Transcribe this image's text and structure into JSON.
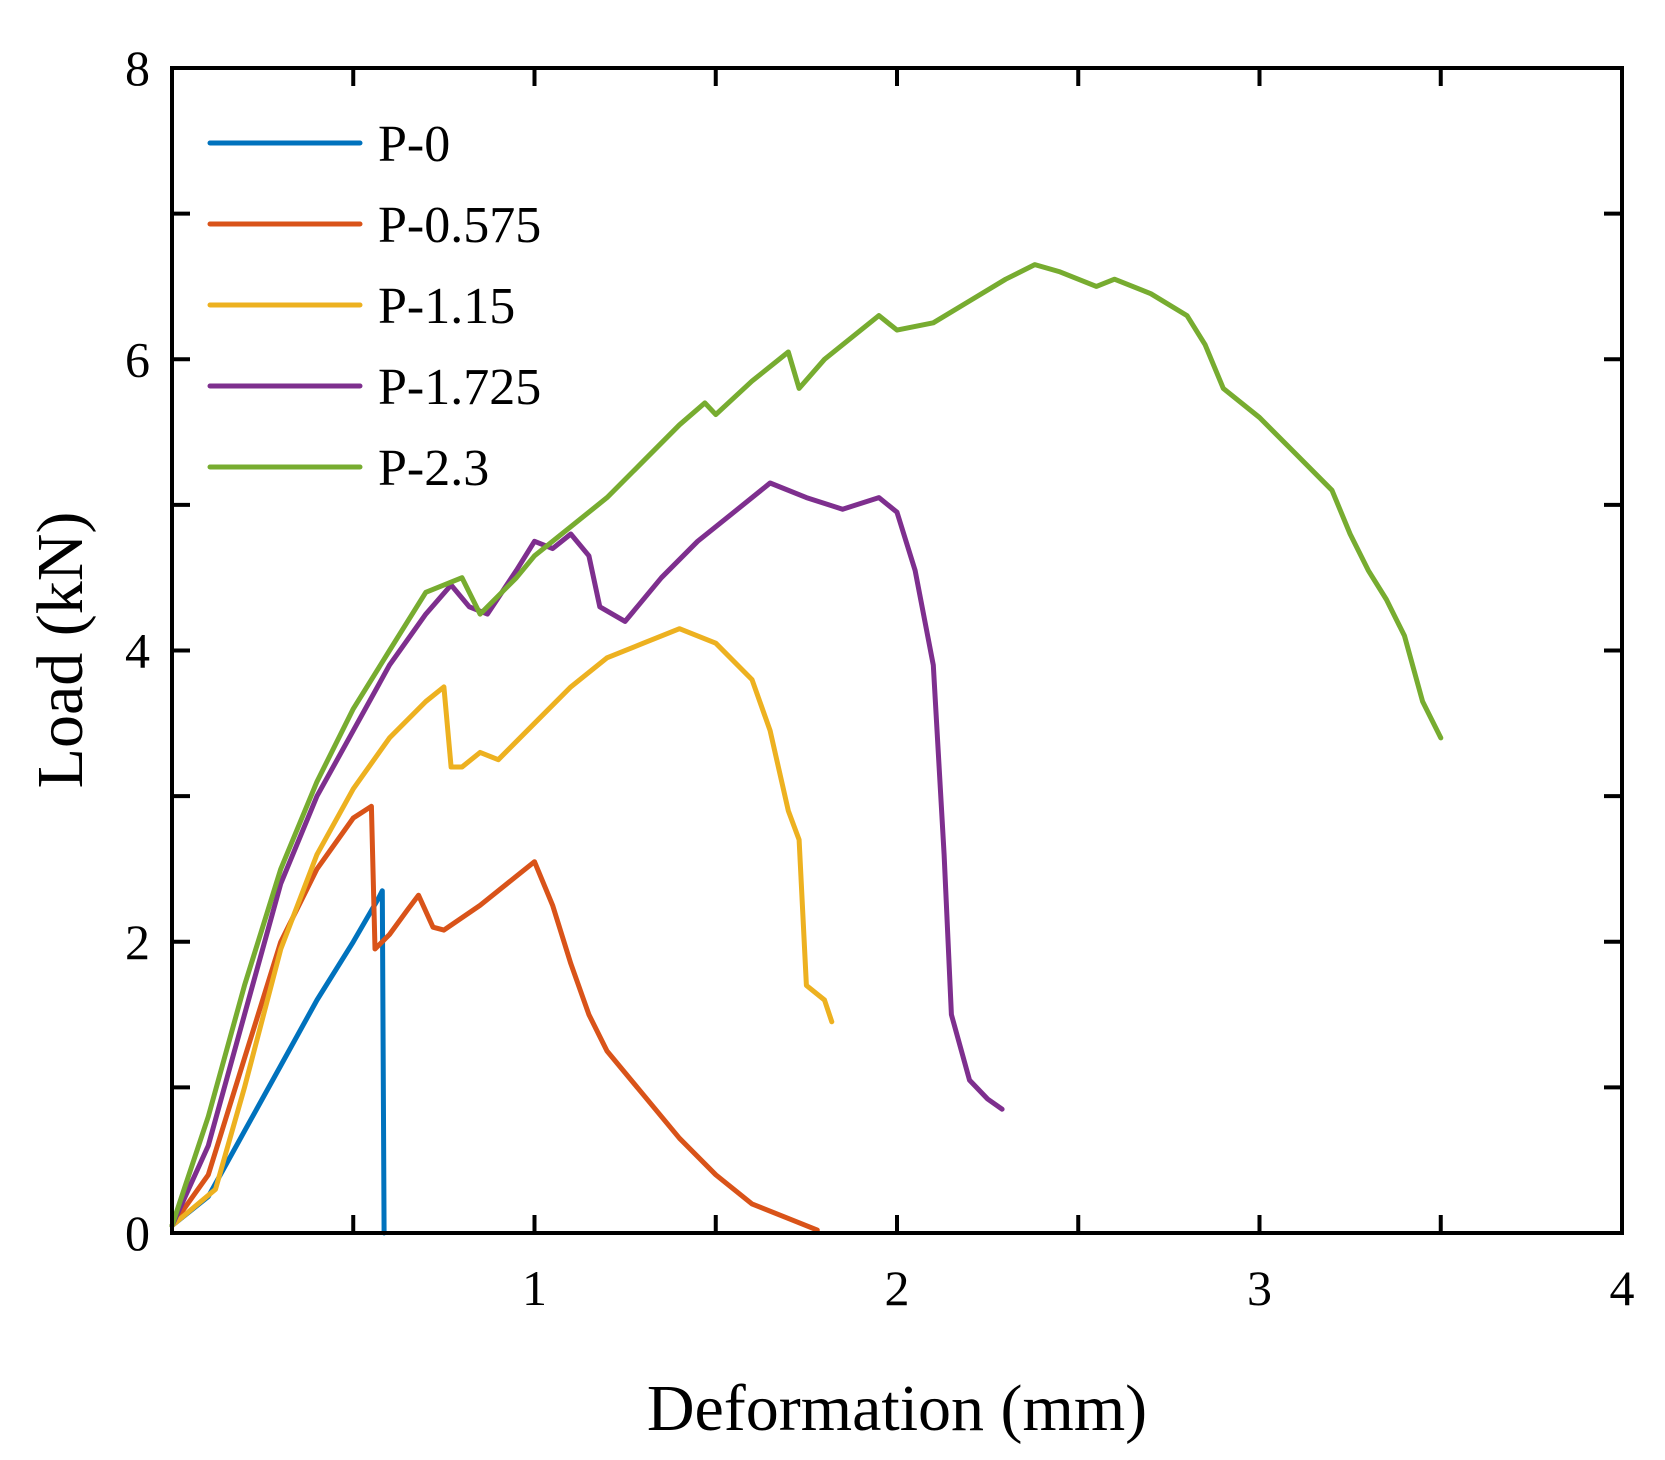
{
  "chart_data": {
    "type": "line",
    "xlabel": "Deformation (mm)",
    "ylabel": "Load (kN)",
    "xlim": [
      0,
      4
    ],
    "ylim": [
      0,
      8
    ],
    "xticks": [
      1,
      2,
      3,
      4
    ],
    "yticks": [
      0,
      2,
      4,
      6,
      8
    ],
    "grid": false,
    "legend_position": "top-left",
    "series": [
      {
        "name": "P-0",
        "color": "#0072BD",
        "points": [
          [
            0,
            0.05
          ],
          [
            0.1,
            0.25
          ],
          [
            0.2,
            0.7
          ],
          [
            0.3,
            1.15
          ],
          [
            0.4,
            1.6
          ],
          [
            0.5,
            2.0
          ],
          [
            0.57,
            2.3
          ],
          [
            0.58,
            2.35
          ],
          [
            0.585,
            0.0
          ]
        ]
      },
      {
        "name": "P-0.575",
        "color": "#D95319",
        "points": [
          [
            0,
            0.05
          ],
          [
            0.1,
            0.4
          ],
          [
            0.2,
            1.2
          ],
          [
            0.3,
            2.0
          ],
          [
            0.4,
            2.5
          ],
          [
            0.5,
            2.85
          ],
          [
            0.55,
            2.93
          ],
          [
            0.56,
            1.95
          ],
          [
            0.6,
            2.05
          ],
          [
            0.65,
            2.22
          ],
          [
            0.68,
            2.32
          ],
          [
            0.72,
            2.1
          ],
          [
            0.75,
            2.08
          ],
          [
            0.85,
            2.25
          ],
          [
            0.95,
            2.45
          ],
          [
            1.0,
            2.55
          ],
          [
            1.05,
            2.25
          ],
          [
            1.1,
            1.85
          ],
          [
            1.15,
            1.5
          ],
          [
            1.2,
            1.25
          ],
          [
            1.3,
            0.95
          ],
          [
            1.4,
            0.65
          ],
          [
            1.5,
            0.4
          ],
          [
            1.6,
            0.2
          ],
          [
            1.7,
            0.1
          ],
          [
            1.78,
            0.02
          ]
        ]
      },
      {
        "name": "P-1.15",
        "color": "#EDB120",
        "points": [
          [
            0,
            0.05
          ],
          [
            0.12,
            0.3
          ],
          [
            0.2,
            1.0
          ],
          [
            0.3,
            1.95
          ],
          [
            0.4,
            2.6
          ],
          [
            0.5,
            3.05
          ],
          [
            0.6,
            3.4
          ],
          [
            0.7,
            3.65
          ],
          [
            0.75,
            3.75
          ],
          [
            0.77,
            3.2
          ],
          [
            0.8,
            3.2
          ],
          [
            0.85,
            3.3
          ],
          [
            0.9,
            3.25
          ],
          [
            1.0,
            3.5
          ],
          [
            1.1,
            3.75
          ],
          [
            1.2,
            3.95
          ],
          [
            1.3,
            4.05
          ],
          [
            1.4,
            4.15
          ],
          [
            1.5,
            4.05
          ],
          [
            1.6,
            3.8
          ],
          [
            1.65,
            3.45
          ],
          [
            1.7,
            2.9
          ],
          [
            1.73,
            2.7
          ],
          [
            1.75,
            1.7
          ],
          [
            1.8,
            1.6
          ],
          [
            1.82,
            1.45
          ]
        ]
      },
      {
        "name": "P-1.725",
        "color": "#7E2F8E",
        "points": [
          [
            0,
            0.05
          ],
          [
            0.1,
            0.6
          ],
          [
            0.2,
            1.5
          ],
          [
            0.3,
            2.4
          ],
          [
            0.4,
            3.0
          ],
          [
            0.5,
            3.45
          ],
          [
            0.6,
            3.9
          ],
          [
            0.7,
            4.25
          ],
          [
            0.77,
            4.45
          ],
          [
            0.82,
            4.3
          ],
          [
            0.87,
            4.25
          ],
          [
            0.95,
            4.55
          ],
          [
            1.0,
            4.75
          ],
          [
            1.05,
            4.7
          ],
          [
            1.1,
            4.8
          ],
          [
            1.15,
            4.65
          ],
          [
            1.18,
            4.3
          ],
          [
            1.25,
            4.2
          ],
          [
            1.35,
            4.5
          ],
          [
            1.45,
            4.75
          ],
          [
            1.55,
            4.95
          ],
          [
            1.65,
            5.15
          ],
          [
            1.75,
            5.05
          ],
          [
            1.85,
            4.97
          ],
          [
            1.95,
            5.05
          ],
          [
            2.0,
            4.95
          ],
          [
            2.05,
            4.55
          ],
          [
            2.1,
            3.9
          ],
          [
            2.13,
            2.6
          ],
          [
            2.15,
            1.5
          ],
          [
            2.2,
            1.05
          ],
          [
            2.25,
            0.92
          ],
          [
            2.29,
            0.85
          ]
        ]
      },
      {
        "name": "P-2.3",
        "color": "#77AC30",
        "points": [
          [
            0,
            0.05
          ],
          [
            0.1,
            0.8
          ],
          [
            0.2,
            1.7
          ],
          [
            0.3,
            2.5
          ],
          [
            0.4,
            3.1
          ],
          [
            0.5,
            3.6
          ],
          [
            0.6,
            4.0
          ],
          [
            0.7,
            4.4
          ],
          [
            0.8,
            4.5
          ],
          [
            0.85,
            4.25
          ],
          [
            0.95,
            4.5
          ],
          [
            1.0,
            4.65
          ],
          [
            1.1,
            4.85
          ],
          [
            1.2,
            5.05
          ],
          [
            1.3,
            5.3
          ],
          [
            1.4,
            5.55
          ],
          [
            1.47,
            5.7
          ],
          [
            1.5,
            5.62
          ],
          [
            1.6,
            5.85
          ],
          [
            1.7,
            6.05
          ],
          [
            1.73,
            5.8
          ],
          [
            1.8,
            6.0
          ],
          [
            1.95,
            6.3
          ],
          [
            2.0,
            6.2
          ],
          [
            2.1,
            6.25
          ],
          [
            2.2,
            6.4
          ],
          [
            2.3,
            6.55
          ],
          [
            2.38,
            6.65
          ],
          [
            2.45,
            6.6
          ],
          [
            2.55,
            6.5
          ],
          [
            2.6,
            6.55
          ],
          [
            2.7,
            6.45
          ],
          [
            2.8,
            6.3
          ],
          [
            2.85,
            6.1
          ],
          [
            2.9,
            5.8
          ],
          [
            3.0,
            5.6
          ],
          [
            3.1,
            5.35
          ],
          [
            3.2,
            5.1
          ],
          [
            3.25,
            4.8
          ],
          [
            3.3,
            4.55
          ],
          [
            3.35,
            4.35
          ],
          [
            3.4,
            4.1
          ],
          [
            3.45,
            3.65
          ],
          [
            3.5,
            3.4
          ]
        ]
      }
    ]
  }
}
